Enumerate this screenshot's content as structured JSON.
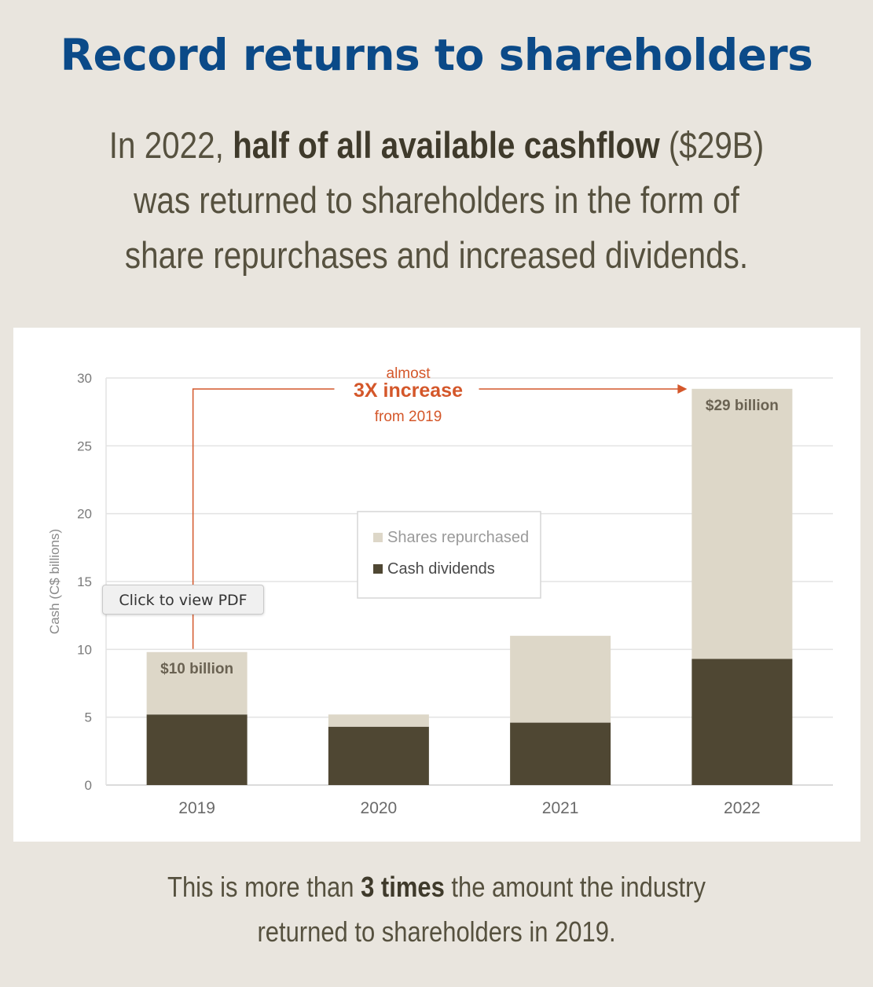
{
  "header": {
    "title": "Record returns to shareholders",
    "subtitle_pre": "In 2022, ",
    "subtitle_bold": "half of all available cashflow",
    "subtitle_post": " ($29B) was returned to shareholders in the form of share repurchases and increased dividends."
  },
  "footer": {
    "text_pre": "This is more than ",
    "text_bold": "3 times",
    "text_post": " the amount the industry returned to shareholders in 2019."
  },
  "tooltip": {
    "label": "Click to view PDF"
  },
  "colors": {
    "dividends": "#4f4733",
    "repurchased": "#ddd7c8",
    "accent": "#d4572a",
    "title": "#0b4a88"
  },
  "chart_data": {
    "type": "bar",
    "stacked": true,
    "categories": [
      "2019",
      "2020",
      "2021",
      "2022"
    ],
    "series": [
      {
        "name": "Cash dividends",
        "values": [
          5.2,
          4.3,
          4.6,
          9.3
        ]
      },
      {
        "name": "Shares repurchased",
        "values": [
          4.6,
          0.9,
          6.4,
          19.9
        ]
      }
    ],
    "ylabel": "Cash (C$ billions)",
    "ylim": [
      0,
      30
    ],
    "yticks": [
      0,
      5,
      10,
      15,
      20,
      25,
      30
    ],
    "grid": true,
    "legend": "center",
    "bar_labels": [
      {
        "category": "2019",
        "text": "$10 billion"
      },
      {
        "category": "2022",
        "text": "$29 billion"
      }
    ],
    "annotation": {
      "line1": "almost",
      "line2": "3X increase",
      "line3": "from  2019"
    }
  }
}
